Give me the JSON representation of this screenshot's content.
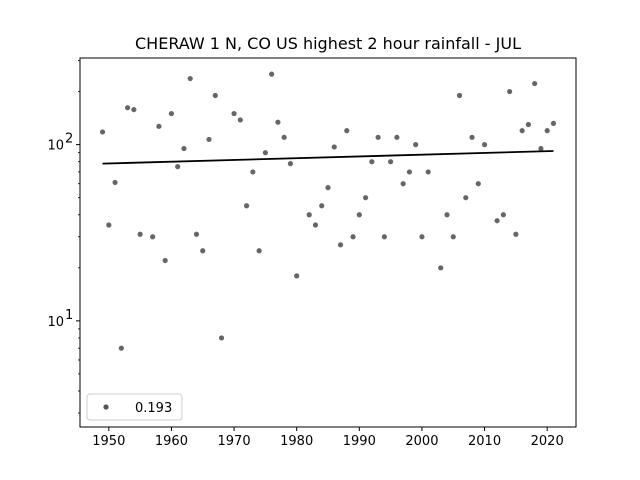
{
  "chart_data": {
    "type": "scatter",
    "title": "CHERAW 1 N, CO US highest 2 hour rainfall - JUL",
    "xlabel": "",
    "ylabel": "",
    "xlim": [
      1945.4,
      2024.6
    ],
    "ylim": [
      2.5,
      310
    ],
    "yscale": "log",
    "grid": false,
    "x_ticks": [
      1950,
      1960,
      1970,
      1980,
      1990,
      2000,
      2010,
      2020
    ],
    "x_tick_labels": [
      "1950",
      "1960",
      "1970",
      "1980",
      "1990",
      "2000",
      "2010",
      "2020"
    ],
    "y_major_ticks": [
      10,
      100
    ],
    "y_tick_labels": [
      "10",
      "10"
    ],
    "y_tick_exponents": [
      "1",
      "2"
    ],
    "y_minor_ticks": [
      3,
      4,
      5,
      6,
      7,
      8,
      9,
      20,
      30,
      40,
      50,
      60,
      70,
      80,
      90,
      200,
      300
    ],
    "series": [
      {
        "name": "0.193",
        "color": "#555555",
        "points": [
          {
            "x": 1949,
            "y": 118
          },
          {
            "x": 1950,
            "y": 35
          },
          {
            "x": 1951,
            "y": 61
          },
          {
            "x": 1952,
            "y": 7
          },
          {
            "x": 1953,
            "y": 162
          },
          {
            "x": 1954,
            "y": 158
          },
          {
            "x": 1955,
            "y": 31
          },
          {
            "x": 1957,
            "y": 30
          },
          {
            "x": 1958,
            "y": 127
          },
          {
            "x": 1959,
            "y": 22
          },
          {
            "x": 1960,
            "y": 150
          },
          {
            "x": 1961,
            "y": 75
          },
          {
            "x": 1962,
            "y": 95
          },
          {
            "x": 1963,
            "y": 237
          },
          {
            "x": 1964,
            "y": 31
          },
          {
            "x": 1965,
            "y": 25
          },
          {
            "x": 1966,
            "y": 107
          },
          {
            "x": 1967,
            "y": 190
          },
          {
            "x": 1968,
            "y": 8
          },
          {
            "x": 1970,
            "y": 150
          },
          {
            "x": 1971,
            "y": 138
          },
          {
            "x": 1972,
            "y": 45
          },
          {
            "x": 1973,
            "y": 70
          },
          {
            "x": 1974,
            "y": 25
          },
          {
            "x": 1975,
            "y": 90
          },
          {
            "x": 1976,
            "y": 251
          },
          {
            "x": 1977,
            "y": 134
          },
          {
            "x": 1978,
            "y": 110
          },
          {
            "x": 1979,
            "y": 78
          },
          {
            "x": 1980,
            "y": 18
          },
          {
            "x": 1982,
            "y": 40
          },
          {
            "x": 1983,
            "y": 35
          },
          {
            "x": 1984,
            "y": 45
          },
          {
            "x": 1985,
            "y": 57
          },
          {
            "x": 1986,
            "y": 97
          },
          {
            "x": 1987,
            "y": 27
          },
          {
            "x": 1988,
            "y": 120
          },
          {
            "x": 1989,
            "y": 30
          },
          {
            "x": 1990,
            "y": 40
          },
          {
            "x": 1991,
            "y": 50
          },
          {
            "x": 1992,
            "y": 80
          },
          {
            "x": 1993,
            "y": 110
          },
          {
            "x": 1994,
            "y": 30
          },
          {
            "x": 1995,
            "y": 80
          },
          {
            "x": 1996,
            "y": 110
          },
          {
            "x": 1997,
            "y": 60
          },
          {
            "x": 1998,
            "y": 70
          },
          {
            "x": 1999,
            "y": 100
          },
          {
            "x": 2000,
            "y": 30
          },
          {
            "x": 2001,
            "y": 70
          },
          {
            "x": 2003,
            "y": 20
          },
          {
            "x": 2004,
            "y": 40
          },
          {
            "x": 2005,
            "y": 30
          },
          {
            "x": 2006,
            "y": 190
          },
          {
            "x": 2007,
            "y": 50
          },
          {
            "x": 2008,
            "y": 110
          },
          {
            "x": 2009,
            "y": 60
          },
          {
            "x": 2010,
            "y": 100
          },
          {
            "x": 2012,
            "y": 37
          },
          {
            "x": 2013,
            "y": 40
          },
          {
            "x": 2014,
            "y": 200
          },
          {
            "x": 2015,
            "y": 31
          },
          {
            "x": 2016,
            "y": 120
          },
          {
            "x": 2017,
            "y": 130
          },
          {
            "x": 2018,
            "y": 222
          },
          {
            "x": 2019,
            "y": 95
          },
          {
            "x": 2020,
            "y": 120
          },
          {
            "x": 2021,
            "y": 132
          }
        ]
      }
    ],
    "trend_line": {
      "color": "#000000",
      "x": [
        1949,
        2021
      ],
      "y": [
        78,
        92
      ]
    },
    "legend": {
      "location": "lower-left",
      "entries": [
        "0.193"
      ]
    }
  }
}
